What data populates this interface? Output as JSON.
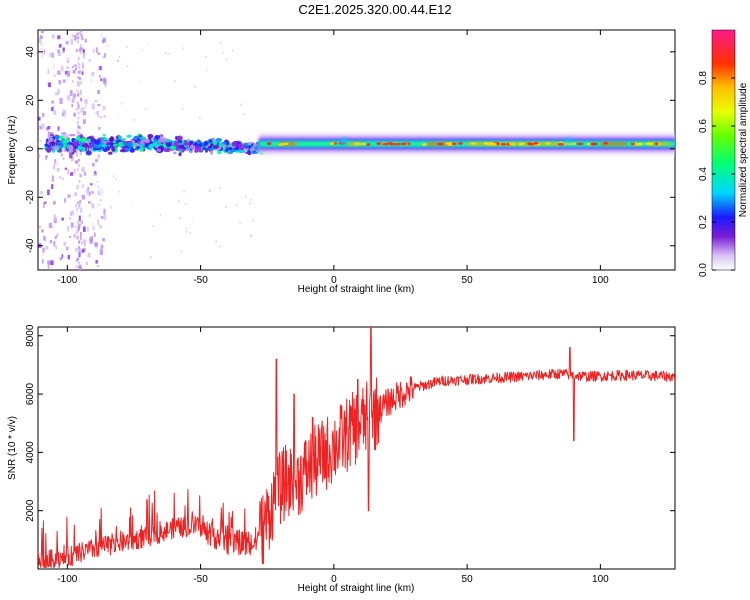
{
  "title": "C2E1.2025.320.00.44.E12",
  "chart_data": [
    {
      "type": "heatmap",
      "name": "spectrogram",
      "xlabel": "Height of straight line (km)",
      "ylabel": "Frequency (Hz)",
      "xlim": [
        -111,
        128
      ],
      "ylim": [
        -50,
        49
      ],
      "xticks": [
        -100,
        -50,
        0,
        50,
        100
      ],
      "yticks": [
        -40,
        -20,
        0,
        20,
        40
      ],
      "description_values": {
        "line_frequency_hz": 2,
        "note": "narrow tone near 2 Hz from ~-25 km to 128 km; broadband scatter for x < -30 km"
      },
      "colorbar": {
        "label": "Normalized spectral amplitude",
        "range": [
          0.0,
          1.0
        ],
        "ticks": [
          "0.0",
          "0.2",
          "0.4",
          "0.6",
          "0.8"
        ]
      }
    },
    {
      "type": "line",
      "name": "snr",
      "xlabel": "Height of straight line (km)",
      "ylabel": "SNR (10 * v/v)",
      "xlim": [
        -111,
        128
      ],
      "ylim": [
        0,
        8300
      ],
      "xticks": [
        -100,
        -50,
        0,
        50,
        100
      ],
      "yticks": [
        2000,
        4000,
        6000,
        8000
      ],
      "color": "#ee2222",
      "anchors": [
        {
          "x": -111,
          "y": 250
        },
        {
          "x": -100,
          "y": 400
        },
        {
          "x": -90,
          "y": 700
        },
        {
          "x": -80,
          "y": 900
        },
        {
          "x": -70,
          "y": 1100
        },
        {
          "x": -60,
          "y": 1400
        },
        {
          "x": -50,
          "y": 1500
        },
        {
          "x": -45,
          "y": 1200
        },
        {
          "x": -40,
          "y": 1000
        },
        {
          "x": -35,
          "y": 900
        },
        {
          "x": -30,
          "y": 850
        },
        {
          "x": -26,
          "y": 1500
        },
        {
          "x": -22,
          "y": 2500
        },
        {
          "x": -18,
          "y": 3000
        },
        {
          "x": -14,
          "y": 3000
        },
        {
          "x": -10,
          "y": 3400
        },
        {
          "x": -5,
          "y": 3800
        },
        {
          "x": 0,
          "y": 4200
        },
        {
          "x": 5,
          "y": 4600
        },
        {
          "x": 10,
          "y": 5000
        },
        {
          "x": 15,
          "y": 5300
        },
        {
          "x": 20,
          "y": 5700
        },
        {
          "x": 25,
          "y": 6000
        },
        {
          "x": 30,
          "y": 6200
        },
        {
          "x": 40,
          "y": 6450
        },
        {
          "x": 50,
          "y": 6500
        },
        {
          "x": 70,
          "y": 6600
        },
        {
          "x": 85,
          "y": 6700
        },
        {
          "x": 95,
          "y": 6600
        },
        {
          "x": 110,
          "y": 6650
        },
        {
          "x": 128,
          "y": 6600
        }
      ],
      "spikes": [
        {
          "x": -21.5,
          "y": 7200
        },
        {
          "x": -15,
          "y": 6000
        },
        {
          "x": -8,
          "y": 5200
        },
        {
          "x": 9,
          "y": 6500
        },
        {
          "x": 14,
          "y": 8300
        },
        {
          "x": 13,
          "y": 2000
        },
        {
          "x": 88.5,
          "y": 7600
        },
        {
          "x": 90,
          "y": 4400
        }
      ]
    }
  ]
}
